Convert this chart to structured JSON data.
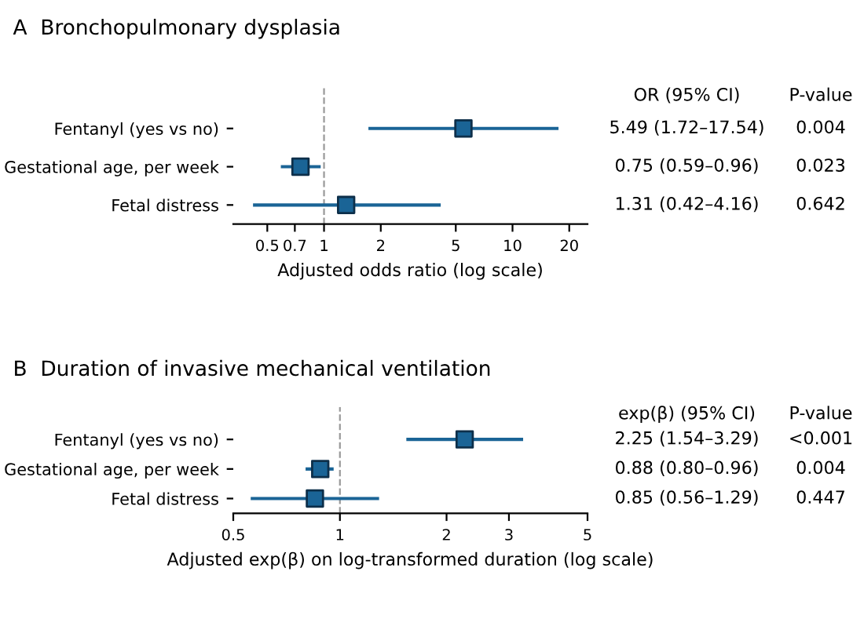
{
  "chart_data": [
    {
      "type": "scatter",
      "orientation": "horizontal",
      "title": "A  Bronchopulmonary dysplasia",
      "xlabel": "Adjusted odds ratio (log scale)",
      "log": "x",
      "marker": "square",
      "grid": false,
      "categories": [
        "Fentanyl (yes vs no)",
        "Gestational age, per week",
        "Fetal distress"
      ],
      "series": [
        {
          "color": "#1a6496",
          "values": [
            5.49,
            0.75,
            1.31
          ],
          "errors": [
            [
              1.72,
              17.54
            ],
            [
              0.59,
              0.96
            ],
            [
              0.42,
              4.16
            ]
          ],
          "value_labels": [
            "5.49 (1.72–17.54)",
            "0.75 (0.59–0.96)",
            "1.31 (0.42–4.16)"
          ]
        }
      ],
      "xlim": [
        0.33,
        25
      ],
      "xticks": [
        0.5,
        0.7,
        1,
        2,
        5,
        10,
        20
      ],
      "ref_lines": [
        {
          "axis": "x",
          "value": 1,
          "color": "#999999",
          "line_style": "dashed"
        }
      ],
      "annotations": [
        "OR (95% CI)",
        "P-value",
        "0.004",
        "0.023",
        "0.642"
      ]
    },
    {
      "type": "scatter",
      "orientation": "horizontal",
      "title": "B  Duration of invasive mechanical ventilation",
      "xlabel": "Adjusted exp(β) on log-transformed duration (log scale)",
      "log": "x",
      "marker": "square",
      "grid": false,
      "categories": [
        "Fentanyl (yes vs no)",
        "Gestational age, per week",
        "Fetal distress"
      ],
      "series": [
        {
          "color": "#1a6496",
          "values": [
            2.25,
            0.88,
            0.85
          ],
          "errors": [
            [
              1.54,
              3.29
            ],
            [
              0.8,
              0.96
            ],
            [
              0.56,
              1.29
            ]
          ],
          "value_labels": [
            "2.25 (1.54–3.29)",
            "0.88 (0.80–0.96)",
            "0.85 (0.56–1.29)"
          ]
        }
      ],
      "xlim": [
        0.5,
        5
      ],
      "xticks": [
        0.5,
        1,
        2,
        3,
        5
      ],
      "ref_lines": [
        {
          "axis": "x",
          "value": 1,
          "color": "#999999",
          "line_style": "dashed"
        }
      ],
      "annotations": [
        "exp(β) (95% CI)",
        "P-value",
        "<0.001",
        "0.004",
        "0.447"
      ]
    }
  ]
}
